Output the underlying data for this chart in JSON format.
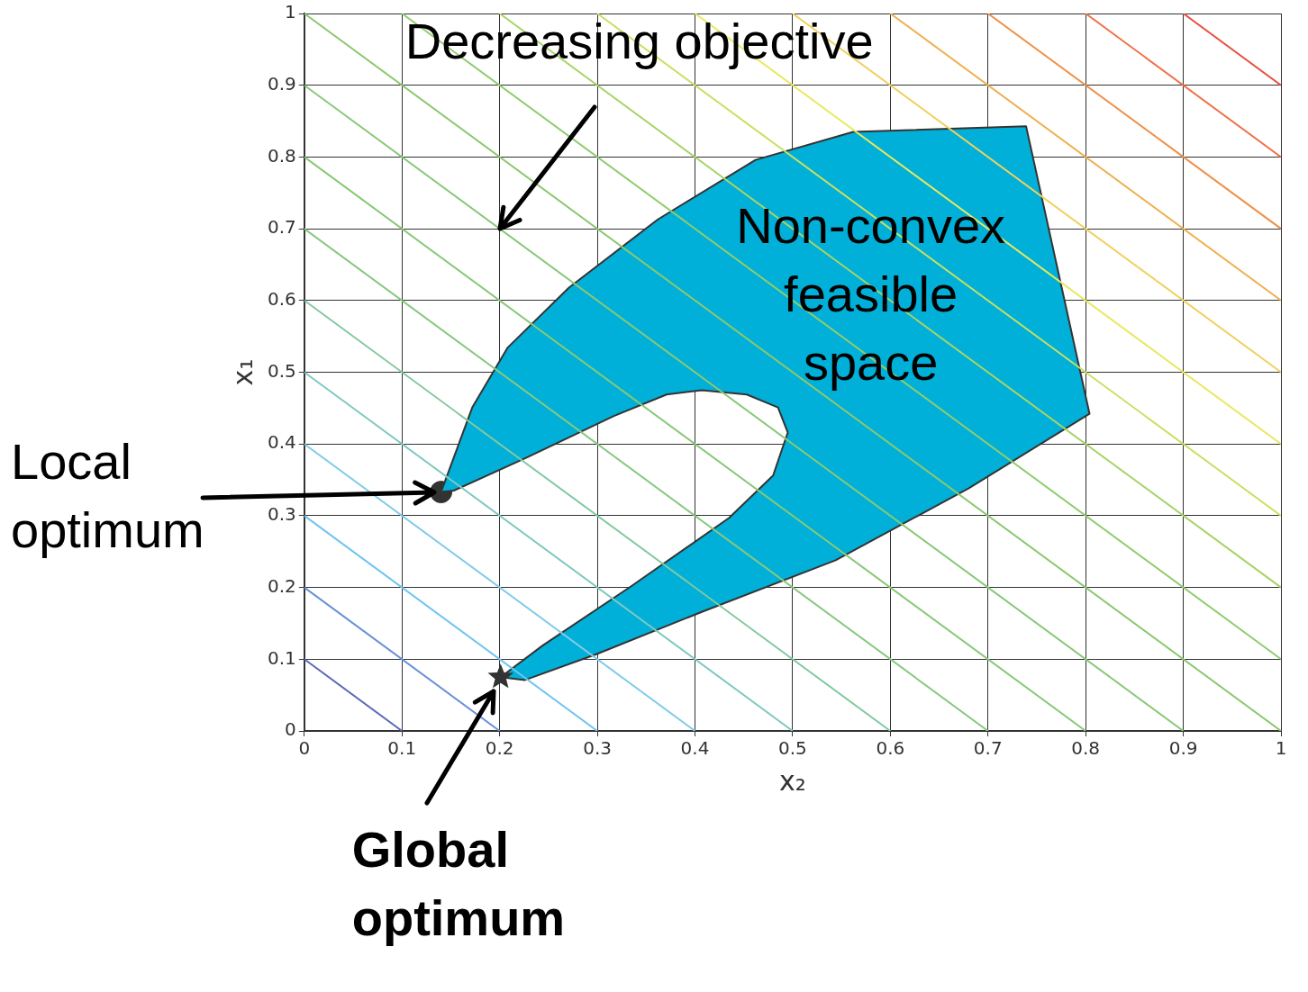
{
  "chart_data": {
    "type": "line",
    "xlabel": "x₂",
    "ylabel": "x₁",
    "xlim": [
      0,
      1
    ],
    "ylim": [
      0,
      1
    ],
    "xticks": [
      0,
      0.1,
      0.2,
      0.3,
      0.4,
      0.5,
      0.6,
      0.7,
      0.8,
      0.9,
      1
    ],
    "yticks": [
      0,
      0.1,
      0.2,
      0.3,
      0.4,
      0.5,
      0.6,
      0.7,
      0.8,
      0.9,
      1
    ],
    "grid": true,
    "series": [
      {
        "type": "line",
        "color": "#5a6ab8",
        "x": [
          0,
          0.1
        ],
        "values": [
          0.1,
          0
        ]
      },
      {
        "type": "line",
        "color": "#6a90d8",
        "x": [
          0,
          0.2
        ],
        "values": [
          0.2,
          0
        ]
      },
      {
        "type": "line",
        "color": "#70c4f0",
        "x": [
          0,
          0.3
        ],
        "values": [
          0.3,
          0
        ]
      },
      {
        "type": "line",
        "color": "#80cce8",
        "x": [
          0,
          0.4
        ],
        "values": [
          0.4,
          0
        ]
      },
      {
        "type": "line",
        "color": "#80c8c0",
        "x": [
          0,
          0.5
        ],
        "values": [
          0.5,
          0
        ]
      },
      {
        "type": "line",
        "color": "#84c8a0",
        "x": [
          0,
          0.6
        ],
        "values": [
          0.6,
          0
        ]
      },
      {
        "type": "line",
        "color": "#88c880",
        "x": [
          0,
          0.7
        ],
        "values": [
          0.7,
          0
        ]
      },
      {
        "type": "line",
        "color": "#88c878",
        "x": [
          0,
          0.8
        ],
        "values": [
          0.8,
          0
        ]
      },
      {
        "type": "line",
        "color": "#88c878",
        "x": [
          0,
          0.9
        ],
        "values": [
          0.9,
          0
        ]
      },
      {
        "type": "line",
        "color": "#8cc870",
        "x": [
          0,
          1
        ],
        "values": [
          1,
          0
        ]
      },
      {
        "type": "line",
        "color": "#90cc70",
        "x": [
          0.1,
          1
        ],
        "values": [
          1,
          0.1
        ]
      },
      {
        "type": "line",
        "color": "#a8d468",
        "x": [
          0.2,
          1
        ],
        "values": [
          1,
          0.2
        ]
      },
      {
        "type": "line",
        "color": "#c8e060",
        "x": [
          0.3,
          1
        ],
        "values": [
          1,
          0.3
        ]
      },
      {
        "type": "line",
        "color": "#e8e860",
        "x": [
          0.4,
          1
        ],
        "values": [
          1,
          0.4
        ]
      },
      {
        "type": "line",
        "color": "#f0d060",
        "x": [
          0.5,
          1
        ],
        "values": [
          1,
          0.5
        ]
      },
      {
        "type": "line",
        "color": "#f0b050",
        "x": [
          0.6,
          1
        ],
        "values": [
          1,
          0.6
        ]
      },
      {
        "type": "line",
        "color": "#f09048",
        "x": [
          0.7,
          1
        ],
        "values": [
          1,
          0.7
        ]
      },
      {
        "type": "line",
        "color": "#f07048",
        "x": [
          0.8,
          1
        ],
        "values": [
          1,
          0.8
        ]
      },
      {
        "type": "line",
        "color": "#e85040",
        "x": [
          0.9,
          1
        ],
        "values": [
          1,
          0.9
        ]
      },
      {
        "type": "area",
        "color": "#00b0d8",
        "x": [
          0.14,
          0.172,
          0.208,
          0.271,
          0.362,
          0.462,
          0.562,
          0.739,
          0.804,
          0.68,
          0.544,
          0.407,
          0.299,
          0.226,
          0.201,
          0.244,
          0.335,
          0.435,
          0.48,
          0.495,
          0.485,
          0.453,
          0.407,
          0.371,
          0.317,
          0.226,
          0.153,
          0.14
        ],
        "values": [
          0.333,
          0.451,
          0.534,
          0.618,
          0.713,
          0.796,
          0.835,
          0.843,
          0.442,
          0.338,
          0.238,
          0.166,
          0.107,
          0.071,
          0.075,
          0.119,
          0.202,
          0.297,
          0.356,
          0.416,
          0.451,
          0.469,
          0.475,
          0.469,
          0.439,
          0.38,
          0.335,
          0.333
        ]
      },
      {
        "type": "scatter",
        "color": "#333333",
        "marker": "circle",
        "x": [
          0.14
        ],
        "values": [
          0.333
        ]
      },
      {
        "type": "scatter",
        "color": "#333333",
        "marker": "star",
        "x": [
          0.201
        ],
        "values": [
          0.075
        ]
      }
    ],
    "annotations": [
      {
        "text": "Decreasing objective",
        "x": 0.2,
        "y": 0.7
      },
      "Non-convex feasible space",
      {
        "text": "Local optimum",
        "x": 0.14,
        "y": 0.333
      },
      {
        "text": "Global optimum",
        "x": 0.201,
        "y": 0.075
      }
    ]
  }
}
